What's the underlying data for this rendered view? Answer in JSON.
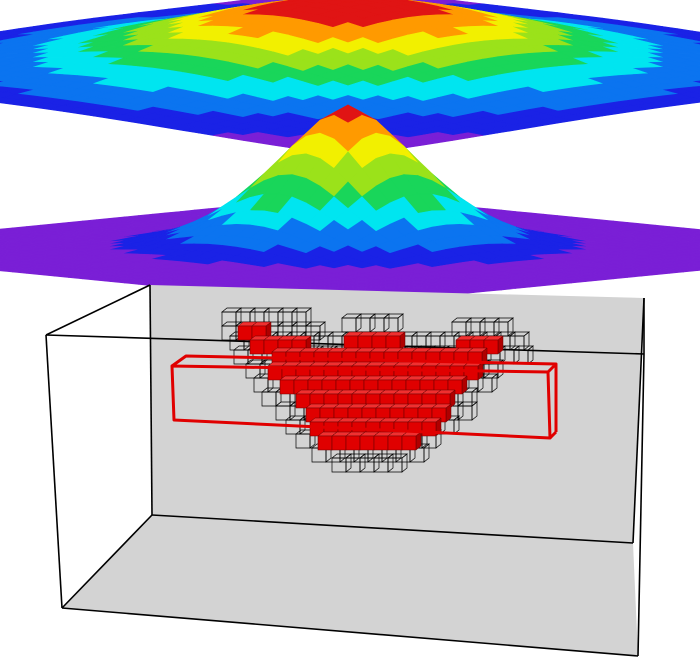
{
  "figure": {
    "colormap": [
      "#7a1fd6",
      "#1a22e6",
      "#0b74f0",
      "#00e5f0",
      "#19d65a",
      "#9be21a",
      "#f2f000",
      "#ff9a00",
      "#e01414"
    ],
    "box_fill": "#d3d3d3",
    "box_stroke": "#000000",
    "highlight_color": "#e00000",
    "filled_cell_color": "#e00000",
    "outline_cell_color": "#000000"
  }
}
